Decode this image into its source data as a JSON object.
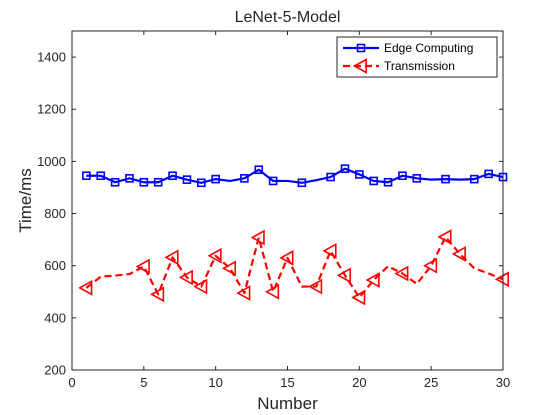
{
  "chart_data": {
    "type": "line",
    "title": "LeNet-5-Model",
    "xlabel": "Number",
    "ylabel": "Time/ms",
    "xlim": [
      0,
      30
    ],
    "ylim": [
      200,
      1500
    ],
    "xticks": [
      0,
      5,
      10,
      15,
      20,
      25,
      30
    ],
    "yticks": [
      200,
      400,
      600,
      800,
      1000,
      1200,
      1400
    ],
    "grid": false,
    "legend_position": "top-right",
    "series": [
      {
        "name": "Edge Computing",
        "color": "#0000ff",
        "line_style": "solid",
        "marker": "square",
        "x": [
          1,
          2,
          3,
          4,
          5,
          6,
          7,
          8,
          9,
          10,
          11,
          12,
          13,
          14,
          15,
          16,
          17,
          18,
          19,
          20,
          21,
          22,
          23,
          24,
          25,
          26,
          27,
          28,
          29,
          30
        ],
        "y": [
          945,
          945,
          920,
          935,
          920,
          920,
          945,
          930,
          918,
          932,
          925,
          935,
          968,
          925,
          925,
          918,
          928,
          940,
          972,
          950,
          925,
          920,
          945,
          935,
          930,
          932,
          930,
          932,
          952,
          940
        ],
        "marker_x": [
          1,
          2,
          3,
          4,
          5,
          6,
          7,
          8,
          9,
          10,
          12,
          13,
          14,
          16,
          18,
          19,
          20,
          21,
          22,
          23,
          24,
          26,
          28,
          29,
          30
        ]
      },
      {
        "name": "Transmission",
        "color": "#ff0000",
        "line_style": "dashed",
        "marker": "triangle-left",
        "x": [
          1,
          2,
          3,
          4,
          5,
          6,
          7,
          8,
          9,
          10,
          11,
          12,
          13,
          14,
          15,
          16,
          17,
          18,
          19,
          20,
          21,
          22,
          23,
          24,
          25,
          26,
          27,
          28,
          29,
          30
        ],
        "y": [
          515,
          558,
          562,
          568,
          597,
          490,
          632,
          555,
          520,
          638,
          590,
          495,
          708,
          500,
          630,
          520,
          520,
          657,
          563,
          478,
          545,
          598,
          570,
          530,
          600,
          710,
          645,
          590,
          570,
          548
        ],
        "marker_x": [
          1,
          5,
          6,
          7,
          8,
          9,
          10,
          11,
          12,
          13,
          14,
          15,
          17,
          18,
          19,
          20,
          21,
          23,
          25,
          26,
          27,
          30
        ]
      }
    ]
  }
}
